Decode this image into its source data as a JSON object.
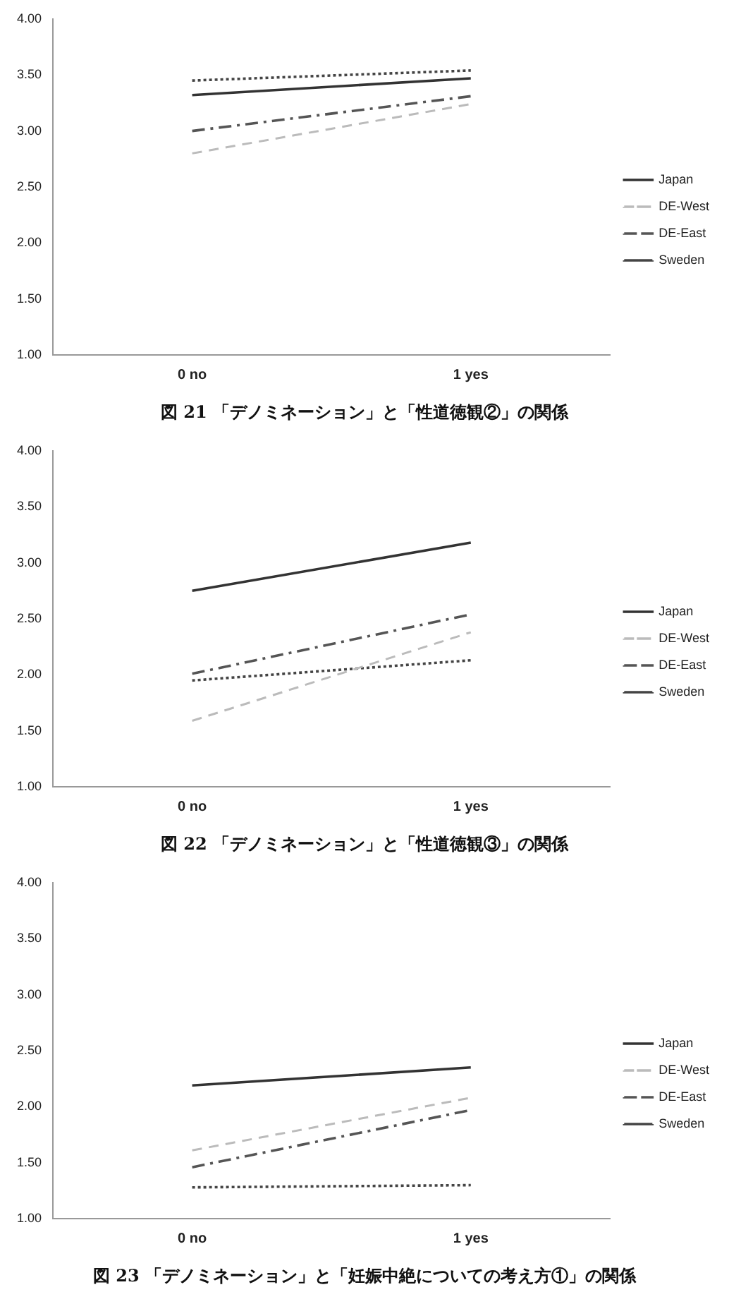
{
  "chart_data": [
    {
      "type": "line",
      "title": "図 21 「デノミネーション」と「性道徳観②」の関係",
      "categories": [
        "0 no",
        "1 yes"
      ],
      "ylim": [
        1,
        4
      ],
      "yticks": [
        {
          "value": 1,
          "label": "1.00"
        },
        {
          "value": 1.5,
          "label": "1.50"
        },
        {
          "value": 2,
          "label": "2.00"
        },
        {
          "value": 2.5,
          "label": "2.50"
        },
        {
          "value": 3,
          "label": "3.00"
        },
        {
          "value": 3.5,
          "label": "3.50"
        },
        {
          "value": 4,
          "label": "4.00"
        }
      ],
      "grid": false,
      "legend": "right",
      "marker": "none",
      "series": [
        {
          "name": "Japan",
          "color": "#333333",
          "line_style": "solid",
          "values": [
            3.32,
            3.47
          ]
        },
        {
          "name": "DE-West",
          "color": "#bbbbbb",
          "line_style": "dashed",
          "values": [
            2.8,
            3.24
          ]
        },
        {
          "name": "DE-East",
          "color": "#555555",
          "line_style": "dashdot",
          "values": [
            3.0,
            3.31
          ]
        },
        {
          "name": "Sweden",
          "color": "#444444",
          "line_style": "dotted",
          "values": [
            3.45,
            3.54
          ]
        }
      ]
    },
    {
      "type": "line",
      "title": "図 22 「デノミネーション」と「性道徳観③」の関係",
      "categories": [
        "0 no",
        "1 yes"
      ],
      "ylim": [
        1,
        4
      ],
      "yticks": [
        {
          "value": 1,
          "label": "1.00"
        },
        {
          "value": 1.5,
          "label": "1.50"
        },
        {
          "value": 2,
          "label": "2.00"
        },
        {
          "value": 2.5,
          "label": "2.50"
        },
        {
          "value": 3,
          "label": "3.00"
        },
        {
          "value": 3.5,
          "label": "3.50"
        },
        {
          "value": 4,
          "label": "4.00"
        }
      ],
      "grid": false,
      "legend": "right",
      "marker": "none",
      "series": [
        {
          "name": "Japan",
          "color": "#333333",
          "line_style": "solid",
          "values": [
            2.75,
            3.18
          ]
        },
        {
          "name": "DE-West",
          "color": "#bbbbbb",
          "line_style": "dashed",
          "values": [
            1.59,
            2.38
          ]
        },
        {
          "name": "DE-East",
          "color": "#555555",
          "line_style": "dashdot",
          "values": [
            2.01,
            2.54
          ]
        },
        {
          "name": "Sweden",
          "color": "#444444",
          "line_style": "dotted",
          "values": [
            1.95,
            2.13
          ]
        }
      ]
    },
    {
      "type": "line",
      "title": "図 23 「デノミネーション」と「妊娠中絶についての考え方①」の関係",
      "categories": [
        "0 no",
        "1 yes"
      ],
      "ylim": [
        1,
        4
      ],
      "yticks": [
        {
          "value": 1,
          "label": "1.00"
        },
        {
          "value": 1.5,
          "label": "1.50"
        },
        {
          "value": 2,
          "label": "2.00"
        },
        {
          "value": 2.5,
          "label": "2.50"
        },
        {
          "value": 3,
          "label": "3.00"
        },
        {
          "value": 3.5,
          "label": "3.50"
        },
        {
          "value": 4,
          "label": "4.00"
        }
      ],
      "grid": false,
      "legend": "right",
      "marker": "none",
      "series": [
        {
          "name": "Japan",
          "color": "#333333",
          "line_style": "solid",
          "values": [
            2.19,
            2.35
          ]
        },
        {
          "name": "DE-West",
          "color": "#bbbbbb",
          "line_style": "dashed",
          "values": [
            1.61,
            2.08
          ]
        },
        {
          "name": "DE-East",
          "color": "#555555",
          "line_style": "dashdot",
          "values": [
            1.46,
            1.97
          ]
        },
        {
          "name": "Sweden",
          "color": "#444444",
          "line_style": "dotted",
          "values": [
            1.28,
            1.3
          ]
        }
      ]
    }
  ]
}
